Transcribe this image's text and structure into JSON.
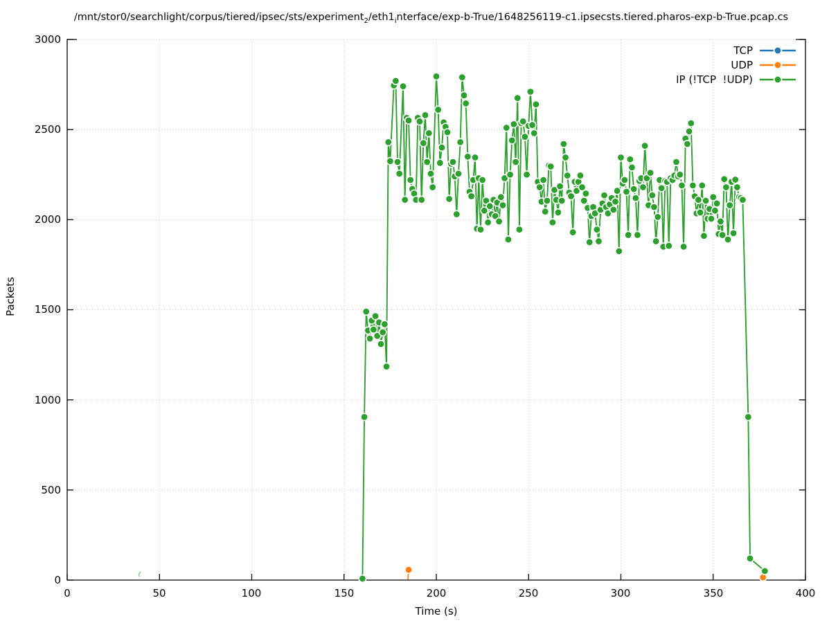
{
  "title": {
    "part1": "/mnt/stor0/searchlight/corpus/tiered/ipsec/sts/experiment",
    "sub1": "2",
    "part2": "/eth1",
    "sub2": "i",
    "part3": "nterface/exp-b-True/1648256119-c1.ipsecsts.tiered.pharos-exp-b-True.pcap.cs"
  },
  "chart_data": {
    "type": "line",
    "title": "/mnt/stor0/searchlight/corpus/tiered/ipsec/sts/experiment_2/eth1_interface/exp-b-True/1648256119-c1.ipsecsts.tiered.pharos-exp-b-True.pcap.cs",
    "xlabel": "Time (s)",
    "ylabel": "Packets",
    "xlim": [
      0,
      400
    ],
    "ylim": [
      0,
      3000
    ],
    "x_ticks": [
      "0",
      "50",
      "100",
      "150",
      "200",
      "250",
      "300",
      "350",
      "400"
    ],
    "y_ticks": [
      "0",
      "500",
      "1000",
      "1500",
      "2000",
      "2500",
      "3000"
    ],
    "grid": true,
    "grid_color": "#c9c9c9",
    "border_color": "#000000",
    "legend_position": "top-right-inside",
    "marker": "filled-circle-white-edge",
    "series": [
      {
        "name": "TCP",
        "color": "#1f77b4",
        "connected": true,
        "points": []
      },
      {
        "name": "UDP",
        "color": "#ff7f0e",
        "connected": false,
        "points": [
          [
            185,
            57
          ],
          [
            377,
            15
          ]
        ],
        "stub_segments": [
          [
            [
              184.6,
              2
            ],
            [
              185,
              57
            ]
          ]
        ]
      },
      {
        "name": "IP (!TCP  !UDP)",
        "color": "#2ca02c",
        "connected": true,
        "points": [
          [
            160,
            8
          ],
          [
            161,
            905
          ],
          [
            162,
            1490
          ],
          [
            163,
            1385
          ],
          [
            164,
            1340
          ],
          [
            165,
            1440
          ],
          [
            166,
            1390
          ],
          [
            167,
            1465
          ],
          [
            168,
            1355
          ],
          [
            169,
            1430
          ],
          [
            170,
            1310
          ],
          [
            171,
            1375
          ],
          [
            172,
            1420
          ],
          [
            173,
            1185
          ],
          [
            174,
            2430
          ],
          [
            175,
            2325
          ],
          [
            177,
            2745
          ],
          [
            178,
            2770
          ],
          [
            179,
            2320
          ],
          [
            180,
            2255
          ],
          [
            182,
            2740
          ],
          [
            183,
            2110
          ],
          [
            184,
            2565
          ],
          [
            185,
            2550
          ],
          [
            186,
            2220
          ],
          [
            187,
            2170
          ],
          [
            188,
            2145
          ],
          [
            189,
            2110
          ],
          [
            190,
            2565
          ],
          [
            191,
            2545
          ],
          [
            192,
            2110
          ],
          [
            193,
            2425
          ],
          [
            194,
            2580
          ],
          [
            195,
            2320
          ],
          [
            196,
            2480
          ],
          [
            197,
            2255
          ],
          [
            198,
            2180
          ],
          [
            200,
            2795
          ],
          [
            201,
            2610
          ],
          [
            202,
            2315
          ],
          [
            203,
            2400
          ],
          [
            204,
            2540
          ],
          [
            205,
            2515
          ],
          [
            206,
            2485
          ],
          [
            207,
            2115
          ],
          [
            208,
            2310
          ],
          [
            209,
            2320
          ],
          [
            210,
            2240
          ],
          [
            211,
            2030
          ],
          [
            212,
            2255
          ],
          [
            213,
            2430
          ],
          [
            214,
            2790
          ],
          [
            215,
            2690
          ],
          [
            216,
            2645
          ],
          [
            217,
            2350
          ],
          [
            218,
            2155
          ],
          [
            219,
            2130
          ],
          [
            220,
            2220
          ],
          [
            221,
            2345
          ],
          [
            222,
            1950
          ],
          [
            223,
            2230
          ],
          [
            224,
            1945
          ],
          [
            225,
            2220
          ],
          [
            226,
            2050
          ],
          [
            227,
            2105
          ],
          [
            228,
            1985
          ],
          [
            229,
            2075
          ],
          [
            230,
            2030
          ],
          [
            231,
            2110
          ],
          [
            232,
            2020
          ],
          [
            233,
            2095
          ],
          [
            234,
            1990
          ],
          [
            235,
            2125
          ],
          [
            236,
            2080
          ],
          [
            237,
            2230
          ],
          [
            238,
            2510
          ],
          [
            239,
            1890
          ],
          [
            240,
            2250
          ],
          [
            241,
            2440
          ],
          [
            242,
            2530
          ],
          [
            243,
            2320
          ],
          [
            244,
            2675
          ],
          [
            245,
            1945
          ],
          [
            246,
            2535
          ],
          [
            247,
            2545
          ],
          [
            248,
            2460
          ],
          [
            249,
            2250
          ],
          [
            250,
            2520
          ],
          [
            251,
            2710
          ],
          [
            252,
            2525
          ],
          [
            253,
            2480
          ],
          [
            254,
            2640
          ],
          [
            255,
            2210
          ],
          [
            256,
            2180
          ],
          [
            257,
            2100
          ],
          [
            258,
            2220
          ],
          [
            259,
            2045
          ],
          [
            260,
            2105
          ],
          [
            261,
            2300
          ],
          [
            262,
            2295
          ],
          [
            263,
            1985
          ],
          [
            264,
            2165
          ],
          [
            265,
            2110
          ],
          [
            266,
            2040
          ],
          [
            267,
            2185
          ],
          [
            268,
            2105
          ],
          [
            269,
            2420
          ],
          [
            270,
            2345
          ],
          [
            271,
            2245
          ],
          [
            272,
            2150
          ],
          [
            273,
            2130
          ],
          [
            274,
            1930
          ],
          [
            275,
            2210
          ],
          [
            276,
            2160
          ],
          [
            277,
            2210
          ],
          [
            278,
            2245
          ],
          [
            279,
            2180
          ],
          [
            280,
            2105
          ],
          [
            281,
            2145
          ],
          [
            282,
            2065
          ],
          [
            283,
            1875
          ],
          [
            284,
            2020
          ],
          [
            285,
            2070
          ],
          [
            286,
            2035
          ],
          [
            287,
            1945
          ],
          [
            288,
            1880
          ],
          [
            289,
            2055
          ],
          [
            290,
            2090
          ],
          [
            291,
            2135
          ],
          [
            292,
            2070
          ],
          [
            293,
            2035
          ],
          [
            294,
            2085
          ],
          [
            295,
            2120
          ],
          [
            296,
            2055
          ],
          [
            297,
            2100
          ],
          [
            298,
            2160
          ],
          [
            299,
            1825
          ],
          [
            300,
            2345
          ],
          [
            301,
            2200
          ],
          [
            302,
            2220
          ],
          [
            303,
            2155
          ],
          [
            304,
            1915
          ],
          [
            305,
            2335
          ],
          [
            306,
            2290
          ],
          [
            307,
            2170
          ],
          [
            308,
            2120
          ],
          [
            309,
            1915
          ],
          [
            310,
            2215
          ],
          [
            311,
            2230
          ],
          [
            312,
            2180
          ],
          [
            313,
            2410
          ],
          [
            314,
            2230
          ],
          [
            315,
            2080
          ],
          [
            316,
            2260
          ],
          [
            317,
            2135
          ],
          [
            318,
            2070
          ],
          [
            319,
            1880
          ],
          [
            320,
            2015
          ],
          [
            321,
            2220
          ],
          [
            322,
            2175
          ],
          [
            323,
            1850
          ],
          [
            324,
            2215
          ],
          [
            325,
            2210
          ],
          [
            326,
            1855
          ],
          [
            327,
            2230
          ],
          [
            328,
            2220
          ],
          [
            329,
            2245
          ],
          [
            330,
            2320
          ],
          [
            331,
            2240
          ],
          [
            332,
            2250
          ],
          [
            333,
            2190
          ],
          [
            334,
            1850
          ],
          [
            335,
            2450
          ],
          [
            336,
            2420
          ],
          [
            337,
            2490
          ],
          [
            338,
            2535
          ],
          [
            339,
            2190
          ],
          [
            340,
            2130
          ],
          [
            341,
            2035
          ],
          [
            342,
            2110
          ],
          [
            343,
            2040
          ],
          [
            344,
            2190
          ],
          [
            345,
            1910
          ],
          [
            346,
            2105
          ],
          [
            347,
            2005
          ],
          [
            348,
            2060
          ],
          [
            349,
            2005
          ],
          [
            350,
            2125
          ],
          [
            351,
            2050
          ],
          [
            352,
            2090
          ],
          [
            353,
            1920
          ],
          [
            354,
            1990
          ],
          [
            355,
            1915
          ],
          [
            356,
            2225
          ],
          [
            357,
            2180
          ],
          [
            358,
            1890
          ],
          [
            359,
            2080
          ],
          [
            360,
            2210
          ],
          [
            361,
            1925
          ],
          [
            362,
            2222
          ],
          [
            363,
            2180
          ],
          [
            364,
            2125
          ],
          [
            365,
            2120
          ],
          [
            366,
            2110
          ],
          [
            369,
            905
          ],
          [
            370,
            120
          ],
          [
            378,
            50
          ]
        ]
      }
    ],
    "artifacts": [
      {
        "type": "partial-marker-arc",
        "color": "#2ca02c",
        "t": 40.5,
        "v": 30
      }
    ]
  }
}
